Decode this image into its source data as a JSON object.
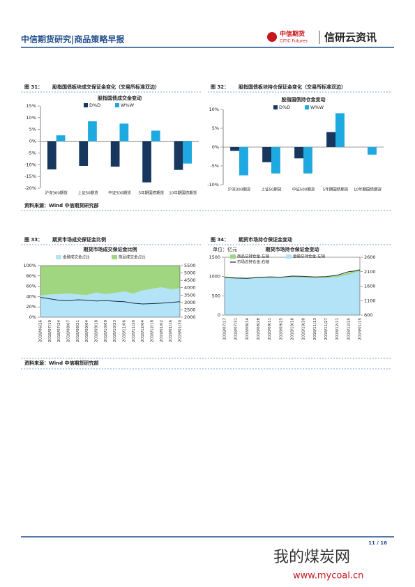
{
  "header": {
    "title": "中信期货研究|商品策略早报",
    "logo_cn": "中信期货",
    "logo_en": "CITIC Futures",
    "brand": "信研云资讯"
  },
  "figures": [
    {
      "label": "图 31：",
      "caption": "股指国债板块成交保证金变化（交易所标准双边）"
    },
    {
      "label": "图 32：",
      "caption": "股指国债板块持仓保证金变化（交易所标准双边）"
    },
    {
      "label": "图 33：",
      "caption": "期货市场成交保证金比例"
    },
    {
      "label": "图 34：",
      "caption": "期货市场持仓保证金变动"
    }
  ],
  "sources": [
    "资料来源：Wind  中信期货研究部",
    "资料来源：Wind  中信期货研究部"
  ],
  "chart_data": [
    {
      "type": "bar",
      "title": "股指国债成交金变动",
      "categories": [
        "沪深300期货",
        "上证50期货",
        "中证500期货",
        "5年期国债期货",
        "10年期国债期货"
      ],
      "series": [
        {
          "name": "D%D",
          "color": "#17375e",
          "values": [
            -12,
            -10.5,
            -10.8,
            -17.5,
            -12.2
          ]
        },
        {
          "name": "W%W",
          "color": "#1fa9e1",
          "values": [
            2.5,
            8.5,
            7.5,
            4.5,
            -9.5
          ]
        }
      ],
      "ylim": [
        -20,
        15
      ],
      "yticks": [
        {
          "value": -20,
          "label": "-20%"
        },
        {
          "value": -15,
          "label": "-15%"
        },
        {
          "value": -10,
          "label": "-10%"
        },
        {
          "value": -5,
          "label": "-5%"
        },
        {
          "value": 0,
          "label": "0%"
        },
        {
          "value": 5,
          "label": "5%"
        },
        {
          "value": 10,
          "label": "10%"
        },
        {
          "value": 15,
          "label": "15%"
        }
      ]
    },
    {
      "type": "bar",
      "title": "股指国债持仓金变动",
      "categories": [
        "沪深300期货",
        "上证50期货",
        "中证500期货",
        "5年期国债期货",
        "10年期国债期货"
      ],
      "series": [
        {
          "name": "D%D",
          "color": "#17375e",
          "values": [
            -1,
            -4,
            -3,
            4,
            0
          ]
        },
        {
          "name": "W%W",
          "color": "#1fa9e1",
          "values": [
            -7.5,
            -7,
            -7,
            9,
            -2
          ]
        }
      ],
      "ylim": [
        -10,
        10
      ],
      "yticks": [
        {
          "value": -10,
          "label": "-10%"
        },
        {
          "value": -5,
          "label": "-5%"
        },
        {
          "value": 0,
          "label": "0%"
        },
        {
          "value": 5,
          "label": "5%"
        },
        {
          "value": 10,
          "label": "10%"
        }
      ]
    },
    {
      "type": "combo",
      "stacked": true,
      "title": "期货市场成交保证金比例",
      "categories": [
        "2018/06/26",
        "2018/07/10",
        "2018/07/24",
        "2018/08/07",
        "2018/08/21",
        "2018/09/04",
        "2018/09/18",
        "2018/10/09",
        "2018/10/23",
        "2018/11/06",
        "2018/11/20",
        "2018/12/04",
        "2018/12/18",
        "2019/01/02",
        "2019/01/16",
        "2019/01/30"
      ],
      "series": [
        {
          "name": "金融成交金占比",
          "color": "#b3e3f7",
          "kind": "area",
          "values": [
            42,
            44,
            45,
            46,
            44,
            43,
            48,
            45,
            47,
            50,
            46,
            52,
            55,
            58,
            54,
            56
          ]
        },
        {
          "name": "商品成交金占比",
          "color": "#9fd67f",
          "kind": "area",
          "values": [
            58,
            56,
            55,
            54,
            56,
            57,
            52,
            55,
            53,
            50,
            54,
            48,
            45,
            42,
            46,
            44
          ]
        },
        {
          "color": "#1a2a44",
          "kind": "line",
          "axis": "y2",
          "values": [
            3350,
            3250,
            3150,
            3120,
            3180,
            3150,
            3100,
            3130,
            3080,
            3050,
            2950,
            2900,
            2920,
            2950,
            3000,
            3050
          ]
        }
      ],
      "ylim": [
        0,
        100
      ],
      "yticks": [
        {
          "value": 0,
          "label": "0%"
        },
        {
          "value": 20,
          "label": "20%"
        },
        {
          "value": 40,
          "label": "40%"
        },
        {
          "value": 60,
          "label": "60%"
        },
        {
          "value": 80,
          "label": "80%"
        },
        {
          "value": 100,
          "label": "100%"
        }
      ],
      "y2lim": [
        2000,
        5500
      ],
      "y2ticks": [
        2000,
        2500,
        3000,
        3500,
        4000,
        4500,
        5000,
        5500
      ]
    },
    {
      "type": "combo",
      "stacked": false,
      "title": "期货市场持仓保证金变动",
      "unit": "单位：亿元",
      "categories": [
        "2018/07/17",
        "2018/07/31",
        "2018/08/14",
        "2018/08/28",
        "2018/09/11",
        "2018/09/25",
        "2018/10/16",
        "2018/10/30",
        "2018/11/13",
        "2018/11/27",
        "2018/12/11",
        "2018/12/25",
        "2019/01/15"
      ],
      "series": [
        {
          "name": "商品总持仓金:左轴",
          "color": "#9fd67f",
          "kind": "area",
          "values": [
            1000,
            980,
            970,
            990,
            1000,
            990,
            1010,
            1000,
            980,
            990,
            1020,
            1100,
            1200
          ]
        },
        {
          "name": "金融总持仓金:左轴",
          "color": "#b3e3f7",
          "kind": "area",
          "values": [
            960,
            950,
            945,
            960,
            970,
            965,
            985,
            975,
            955,
            965,
            990,
            1050,
            1150
          ]
        },
        {
          "name": "市场总持仓金:右轴",
          "color": "#1a2a44",
          "kind": "line",
          "axis": "y2",
          "values": [
            1900,
            1880,
            1870,
            1900,
            1920,
            1910,
            1950,
            1940,
            1920,
            1930,
            1980,
            2100,
            2150
          ]
        }
      ],
      "ylim": [
        0,
        1500
      ],
      "yticks": [
        0,
        500,
        1000,
        1500
      ],
      "y2lim": [
        600,
        2600
      ],
      "y2ticks": [
        600,
        1100,
        1600,
        2100,
        2600
      ]
    }
  ],
  "footer": {
    "page": "11 / 16"
  },
  "watermark": {
    "name": "我的煤炭网",
    "url": "www.mycoal.cn"
  }
}
